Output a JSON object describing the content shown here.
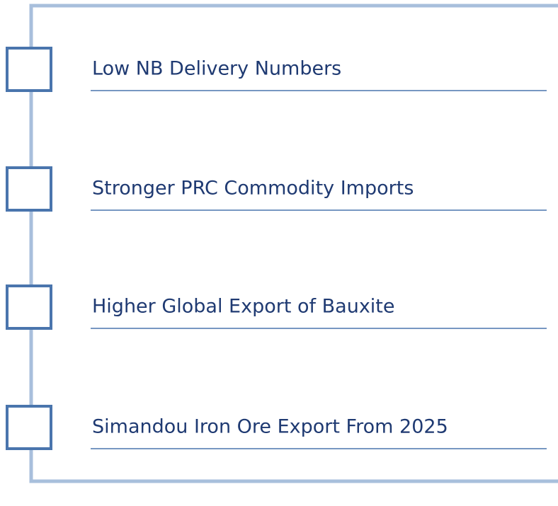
{
  "items": [
    {
      "label": "Low NB Delivery Numbers"
    },
    {
      "label": "Stronger PRC Commodity Imports"
    },
    {
      "label": "Higher Global Export of Bauxite"
    },
    {
      "label": "Simandou Iron Ore Export From 2025"
    }
  ]
}
